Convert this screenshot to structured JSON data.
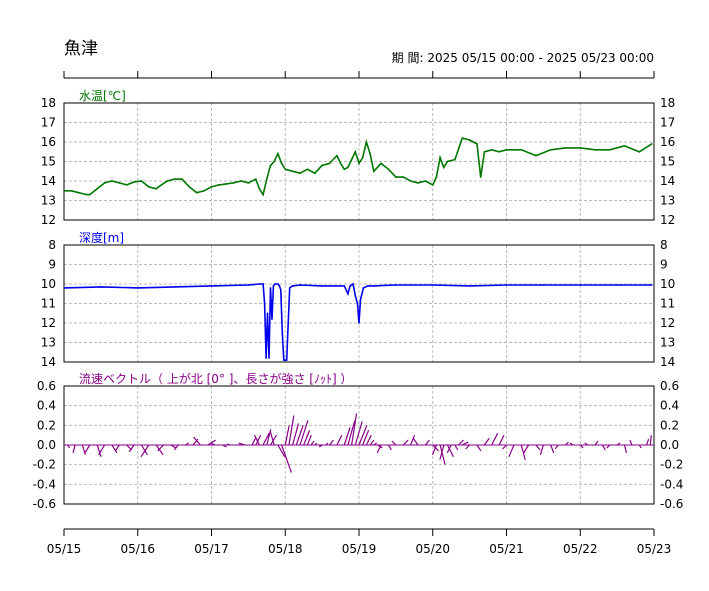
{
  "station": "魚津",
  "period": {
    "label": "期 間:",
    "start": "2025 05/15 00:00",
    "separator": " - ",
    "end": "2025 05/23 00:00"
  },
  "x_ticks": [
    "05/15",
    "05/16",
    "05/17",
    "05/18",
    "05/19",
    "05/20",
    "05/21",
    "05/22",
    "05/23"
  ],
  "colors": {
    "temperature": "#007700",
    "depth": "#0000ee",
    "current": "#880088",
    "grid": "#bbbbbb",
    "axis": "#000000"
  },
  "chart_data": [
    {
      "type": "line",
      "id": "water-temperature",
      "title": "水温[℃]",
      "ylim": [
        12,
        18
      ],
      "y_ticks": [
        12,
        13,
        14,
        15,
        16,
        17,
        18
      ],
      "x_unit": "days since 05/15 00:00",
      "series": [
        {
          "x": [
            0,
            0.1,
            0.2,
            0.3,
            0.35,
            0.45,
            0.55,
            0.65,
            0.75,
            0.85,
            0.95,
            1.05,
            1.15,
            1.25,
            1.3,
            1.4,
            1.5,
            1.6,
            1.7,
            1.8,
            1.9,
            2.0,
            2.1,
            2.2,
            2.3,
            2.4,
            2.5,
            2.6,
            2.65,
            2.7,
            2.75,
            2.8,
            2.85,
            2.9,
            2.95,
            3.0,
            3.1,
            3.2,
            3.3,
            3.4,
            3.5,
            3.6,
            3.7,
            3.75,
            3.8,
            3.85,
            3.9,
            3.95,
            4.0,
            4.05,
            4.1,
            4.15,
            4.2,
            4.3,
            4.4,
            4.5,
            4.6,
            4.7,
            4.8,
            4.9,
            5.0,
            5.05,
            5.1,
            5.15,
            5.2,
            5.3,
            5.4,
            5.5,
            5.55,
            5.6,
            5.65,
            5.7,
            5.8,
            5.9,
            6.0,
            6.2,
            6.4,
            6.6,
            6.8,
            7.0,
            7.2,
            7.4,
            7.6,
            7.8,
            7.97
          ],
          "values": [
            13.5,
            13.5,
            13.4,
            13.3,
            13.3,
            13.6,
            13.9,
            14.0,
            13.9,
            13.8,
            13.95,
            14.0,
            13.7,
            13.6,
            13.75,
            14.0,
            14.1,
            14.1,
            13.7,
            13.4,
            13.5,
            13.7,
            13.8,
            13.85,
            13.9,
            14.0,
            13.9,
            14.1,
            13.6,
            13.3,
            14.1,
            14.8,
            15.0,
            15.4,
            14.9,
            14.6,
            14.5,
            14.4,
            14.6,
            14.4,
            14.8,
            14.9,
            15.3,
            14.9,
            14.6,
            14.7,
            15.1,
            15.5,
            14.9,
            15.2,
            16.0,
            15.4,
            14.5,
            14.9,
            14.6,
            14.2,
            14.2,
            14.0,
            13.9,
            14.0,
            13.8,
            14.2,
            15.2,
            14.7,
            15.0,
            15.1,
            16.2,
            16.1,
            16.0,
            15.9,
            14.2,
            15.5,
            15.6,
            15.5,
            15.6,
            15.6,
            15.3,
            15.6,
            15.7,
            15.7,
            15.6,
            15.6,
            15.8,
            15.5,
            15.9
          ]
        }
      ]
    },
    {
      "type": "line",
      "id": "depth",
      "title": "深度[m]",
      "ylim": [
        14,
        8
      ],
      "y_ticks": [
        8,
        9,
        10,
        11,
        12,
        13,
        14
      ],
      "x_unit": "days since 05/15 00:00",
      "series": [
        {
          "x": [
            0,
            0.5,
            1.0,
            1.5,
            2.0,
            2.5,
            2.65,
            2.7,
            2.72,
            2.74,
            2.76,
            2.78,
            2.8,
            2.82,
            2.84,
            2.86,
            2.88,
            2.9,
            2.92,
            2.94,
            2.96,
            2.98,
            3.0,
            3.02,
            3.04,
            3.06,
            3.1,
            3.2,
            3.5,
            3.8,
            3.85,
            3.88,
            3.92,
            3.95,
            3.98,
            4.0,
            4.02,
            4.06,
            4.12,
            4.2,
            4.5,
            5.0,
            5.5,
            6.0,
            6.5,
            7.0,
            7.5,
            7.97
          ],
          "values": [
            10.2,
            10.15,
            10.2,
            10.15,
            10.1,
            10.05,
            10.0,
            10.0,
            11.0,
            13.8,
            11.5,
            13.8,
            10.2,
            11.8,
            10.1,
            10.0,
            10.0,
            10.0,
            10.1,
            10.3,
            12.5,
            13.9,
            13.9,
            13.9,
            12.0,
            10.2,
            10.1,
            10.05,
            10.1,
            10.1,
            10.5,
            10.1,
            10.0,
            10.6,
            11.0,
            12.0,
            10.8,
            10.2,
            10.1,
            10.1,
            10.05,
            10.05,
            10.1,
            10.05,
            10.05,
            10.05,
            10.05,
            10.05
          ]
        }
      ]
    },
    {
      "type": "vector",
      "id": "current-vector",
      "title": "流速ベクトル（ 上が北 [0° ]、長さが強さ [ﾉｯﾄ] ）",
      "ylim": [
        -0.6,
        0.6
      ],
      "y_ticks": [
        0.6,
        0.4,
        0.2,
        0.0,
        -0.2,
        -0.4,
        -0.6
      ],
      "x_unit": "days since 05/15 00:00",
      "series": [
        {
          "x": [
            0.05,
            0.15,
            0.25,
            0.35,
            0.45,
            0.55,
            0.65,
            0.75,
            0.85,
            0.95,
            1.05,
            1.15,
            1.25,
            1.35,
            1.45,
            1.55,
            1.65,
            1.75,
            1.85,
            1.95,
            2.05,
            2.15,
            2.25,
            2.35,
            2.45,
            2.55,
            2.6,
            2.65,
            2.7,
            2.75,
            2.8,
            2.85,
            2.9,
            2.95,
            3.0,
            3.05,
            3.1,
            3.15,
            3.2,
            3.25,
            3.3,
            3.35,
            3.4,
            3.45,
            3.5,
            3.55,
            3.6,
            3.7,
            3.8,
            3.85,
            3.9,
            3.95,
            4.0,
            4.05,
            4.1,
            4.15,
            4.2,
            4.25,
            4.3,
            4.4,
            4.5,
            4.6,
            4.7,
            4.8,
            4.9,
            5.0,
            5.05,
            5.1,
            5.15,
            5.2,
            5.25,
            5.3,
            5.35,
            5.4,
            5.5,
            5.6,
            5.7,
            5.8,
            5.9,
            6.0,
            6.1,
            6.2,
            6.3,
            6.4,
            6.5,
            6.6,
            6.7,
            6.8,
            6.9,
            7.0,
            7.1,
            7.2,
            7.3,
            7.4,
            7.5,
            7.6,
            7.7,
            7.8,
            7.9,
            7.95
          ],
          "values": [
            -0.03,
            -0.08,
            -0.1,
            -0.08,
            -0.12,
            -0.1,
            -0.08,
            -0.06,
            -0.05,
            -0.07,
            -0.1,
            -0.12,
            -0.1,
            -0.06,
            -0.03,
            -0.05,
            0.02,
            0.06,
            0.08,
            0.05,
            0.02,
            -0.02,
            0.01,
            0.0,
            0.02,
            0.08,
            0.1,
            0.1,
            0.12,
            0.16,
            0.1,
            0.14,
            -0.12,
            -0.28,
            0.2,
            0.3,
            0.22,
            0.2,
            0.25,
            0.15,
            0.1,
            0.04,
            0.02,
            0.0,
            -0.02,
            0.02,
            0.05,
            0.1,
            0.18,
            0.25,
            0.32,
            0.24,
            0.2,
            0.15,
            0.1,
            0.05,
            0.02,
            -0.03,
            -0.08,
            -0.05,
            0.04,
            0.05,
            0.1,
            0.07,
            0.05,
            -0.06,
            -0.1,
            -0.2,
            -0.15,
            -0.12,
            -0.08,
            -0.05,
            0.05,
            0.03,
            -0.04,
            -0.06,
            0.07,
            0.12,
            0.1,
            -0.04,
            -0.12,
            -0.15,
            -0.08,
            -0.05,
            -0.1,
            -0.08,
            -0.04,
            0.03,
            0.02,
            -0.03,
            0.02,
            0.04,
            -0.05,
            -0.03,
            0.02,
            -0.08,
            0.05,
            -0.03,
            0.06,
            0.1
          ],
          "dx": [
            0.02,
            -0.02,
            0.03,
            -0.05,
            0.04,
            -0.06,
            0.05,
            -0.04,
            0.05,
            -0.05,
            0.06,
            -0.08,
            0.07,
            -0.06,
            0.05,
            -0.04,
            0.03,
            0.05,
            -0.07,
            0.08,
            -0.05,
            0.04,
            -0.03,
            0.05,
            -0.06,
            0.04,
            0.05,
            -0.05,
            0.06,
            0.04,
            0.06,
            -0.04,
            0.07,
            0.1,
            0.04,
            0.05,
            0.06,
            0.07,
            0.08,
            0.06,
            0.04,
            0.03,
            0.02,
            0.04,
            -0.03,
            0.02,
            0.04,
            0.05,
            0.06,
            0.07,
            0.05,
            0.07,
            0.08,
            0.06,
            0.05,
            0.04,
            0.03,
            0.05,
            -0.04,
            0.03,
            -0.04,
            0.05,
            0.04,
            -0.05,
            0.04,
            0.06,
            -0.04,
            0.05,
            -0.04,
            0.06,
            -0.04,
            0.03,
            0.05,
            0.06,
            -0.04,
            0.04,
            0.05,
            0.06,
            0.05,
            -0.04,
            -0.05,
            0.04,
            -0.05,
            0.04,
            -0.03,
            0.03,
            -0.03,
            0.03,
            -0.03,
            0.03,
            -0.03,
            0.03,
            0.03,
            -0.03,
            0.03,
            0.02,
            -0.02,
            0.02,
            0.02,
            0.01
          ]
        }
      ]
    }
  ]
}
